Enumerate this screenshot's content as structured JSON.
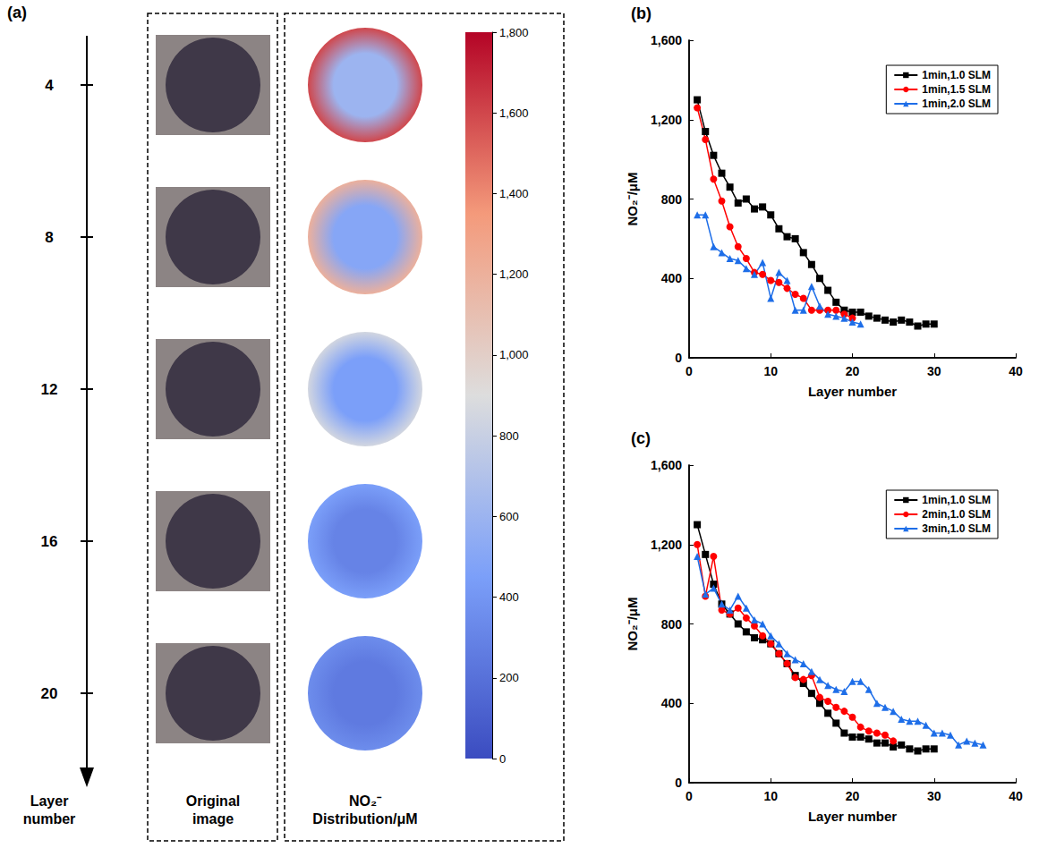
{
  "panel_a": {
    "panel_label": "(a)",
    "layer_axis_title": "Layer number",
    "column_titles": [
      "Original image",
      "NO₂⁻ Distribution/μM"
    ],
    "layers": [
      4,
      8,
      12,
      16,
      20
    ],
    "center_values": [
      600,
      500,
      450,
      300,
      250
    ],
    "edge_values": [
      1600,
      1200,
      850,
      450,
      350
    ],
    "colorbar": {
      "range": [
        0,
        1800
      ],
      "ticks": [
        0,
        200,
        400,
        600,
        800,
        1000,
        1200,
        1400,
        1600,
        1800
      ]
    }
  },
  "chart_data": [
    {
      "type": "line",
      "panel_label": "(b)",
      "x_label": "Layer number",
      "y_label": "NO₂⁻/μM",
      "xlim": [
        0,
        40
      ],
      "xticks": [
        0,
        10,
        20,
        30,
        40
      ],
      "ylim": [
        0,
        1600
      ],
      "yticks": [
        0,
        400,
        800,
        1200,
        1600
      ],
      "grid": false,
      "legend": "upper right",
      "series": [
        {
          "name": "1min,1.0 SLM",
          "color": "#000000",
          "marker": "square",
          "x": [
            1,
            2,
            3,
            4,
            5,
            6,
            7,
            8,
            9,
            10,
            11,
            12,
            13,
            14,
            15,
            16,
            17,
            18,
            19,
            20,
            21,
            22,
            23,
            24,
            25,
            26,
            27,
            28,
            29,
            30
          ],
          "values": [
            1300,
            1140,
            1020,
            930,
            860,
            780,
            800,
            750,
            760,
            720,
            650,
            610,
            600,
            530,
            470,
            400,
            340,
            280,
            240,
            230,
            230,
            210,
            200,
            190,
            180,
            190,
            180,
            160,
            170,
            170
          ]
        },
        {
          "name": "1min,1.5 SLM",
          "color": "#ff0000",
          "marker": "circle",
          "x": [
            1,
            2,
            3,
            4,
            5,
            6,
            7,
            8,
            9,
            10,
            11,
            12,
            13,
            14,
            15,
            16,
            17,
            18,
            19,
            20
          ],
          "values": [
            1260,
            1100,
            900,
            790,
            660,
            560,
            500,
            430,
            420,
            390,
            380,
            350,
            320,
            300,
            240,
            240,
            240,
            240,
            220,
            200
          ]
        },
        {
          "name": "1min,2.0 SLM",
          "color": "#1e6ee8",
          "marker": "triangle",
          "x": [
            1,
            2,
            3,
            4,
            5,
            6,
            7,
            8,
            9,
            10,
            11,
            12,
            13,
            14,
            15,
            16,
            17,
            18,
            19,
            20,
            21
          ],
          "values": [
            720,
            720,
            560,
            530,
            500,
            490,
            450,
            420,
            480,
            300,
            430,
            390,
            240,
            240,
            360,
            260,
            220,
            210,
            200,
            180,
            170
          ]
        }
      ]
    },
    {
      "type": "line",
      "panel_label": "(c)",
      "x_label": "Layer number",
      "y_label": "NO₂⁻/μM",
      "xlim": [
        0,
        40
      ],
      "xticks": [
        0,
        10,
        20,
        30,
        40
      ],
      "ylim": [
        0,
        1600
      ],
      "yticks": [
        0,
        400,
        800,
        1200,
        1600
      ],
      "grid": false,
      "legend": "upper right",
      "series": [
        {
          "name": "1min,1.0 SLM",
          "color": "#000000",
          "marker": "square",
          "x": [
            1,
            2,
            3,
            4,
            5,
            6,
            7,
            8,
            9,
            10,
            11,
            12,
            13,
            14,
            15,
            16,
            17,
            18,
            19,
            20,
            21,
            22,
            23,
            24,
            25,
            26,
            27,
            28,
            29,
            30
          ],
          "values": [
            1300,
            1150,
            1000,
            900,
            850,
            800,
            760,
            730,
            720,
            700,
            650,
            600,
            540,
            500,
            450,
            400,
            350,
            300,
            250,
            230,
            230,
            220,
            200,
            200,
            180,
            190,
            170,
            160,
            170,
            170
          ]
        },
        {
          "name": "2min,1.0 SLM",
          "color": "#ff0000",
          "marker": "circle",
          "x": [
            1,
            2,
            3,
            4,
            5,
            6,
            7,
            8,
            9,
            10,
            11,
            12,
            13,
            14,
            15,
            16,
            17,
            18,
            19,
            20,
            21,
            22,
            23,
            24,
            25
          ],
          "values": [
            1200,
            940,
            1140,
            870,
            850,
            880,
            830,
            790,
            740,
            700,
            650,
            600,
            530,
            520,
            540,
            430,
            410,
            380,
            360,
            330,
            280,
            260,
            250,
            240,
            210
          ]
        },
        {
          "name": "3min,1.0 SLM",
          "color": "#1e6ee8",
          "marker": "triangle",
          "x": [
            1,
            2,
            3,
            4,
            5,
            6,
            7,
            8,
            9,
            10,
            11,
            12,
            13,
            14,
            15,
            16,
            17,
            18,
            19,
            20,
            21,
            22,
            23,
            24,
            25,
            26,
            27,
            28,
            29,
            30,
            31,
            32,
            33,
            34,
            35,
            36
          ],
          "values": [
            1140,
            950,
            980,
            900,
            870,
            940,
            880,
            820,
            800,
            740,
            700,
            650,
            620,
            600,
            560,
            520,
            490,
            470,
            460,
            510,
            510,
            470,
            400,
            380,
            360,
            320,
            310,
            310,
            290,
            250,
            250,
            240,
            190,
            210,
            200,
            190
          ]
        }
      ]
    }
  ]
}
